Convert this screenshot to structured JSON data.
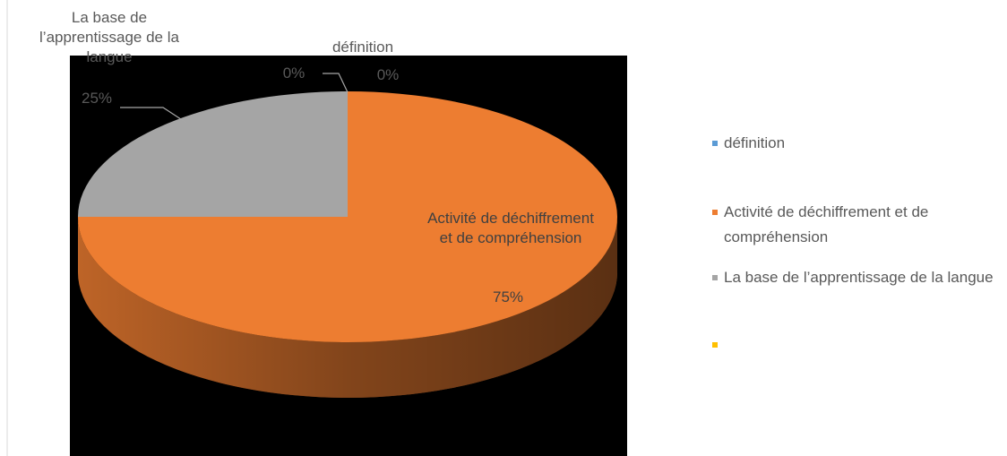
{
  "chart_data": {
    "type": "pie3d",
    "categories": [
      "définition",
      "Activité de déchiffrement et de compréhension",
      "La base de l’apprentissage de la langue",
      null
    ],
    "values": [
      0,
      75,
      25,
      0
    ],
    "value_labels": [
      "0%",
      "75%",
      "25%",
      "0%"
    ],
    "colors": [
      "#5b9bd5",
      "#ed7d31",
      "#a5a5a5",
      "#ffc000"
    ],
    "legend": "right"
  }
}
